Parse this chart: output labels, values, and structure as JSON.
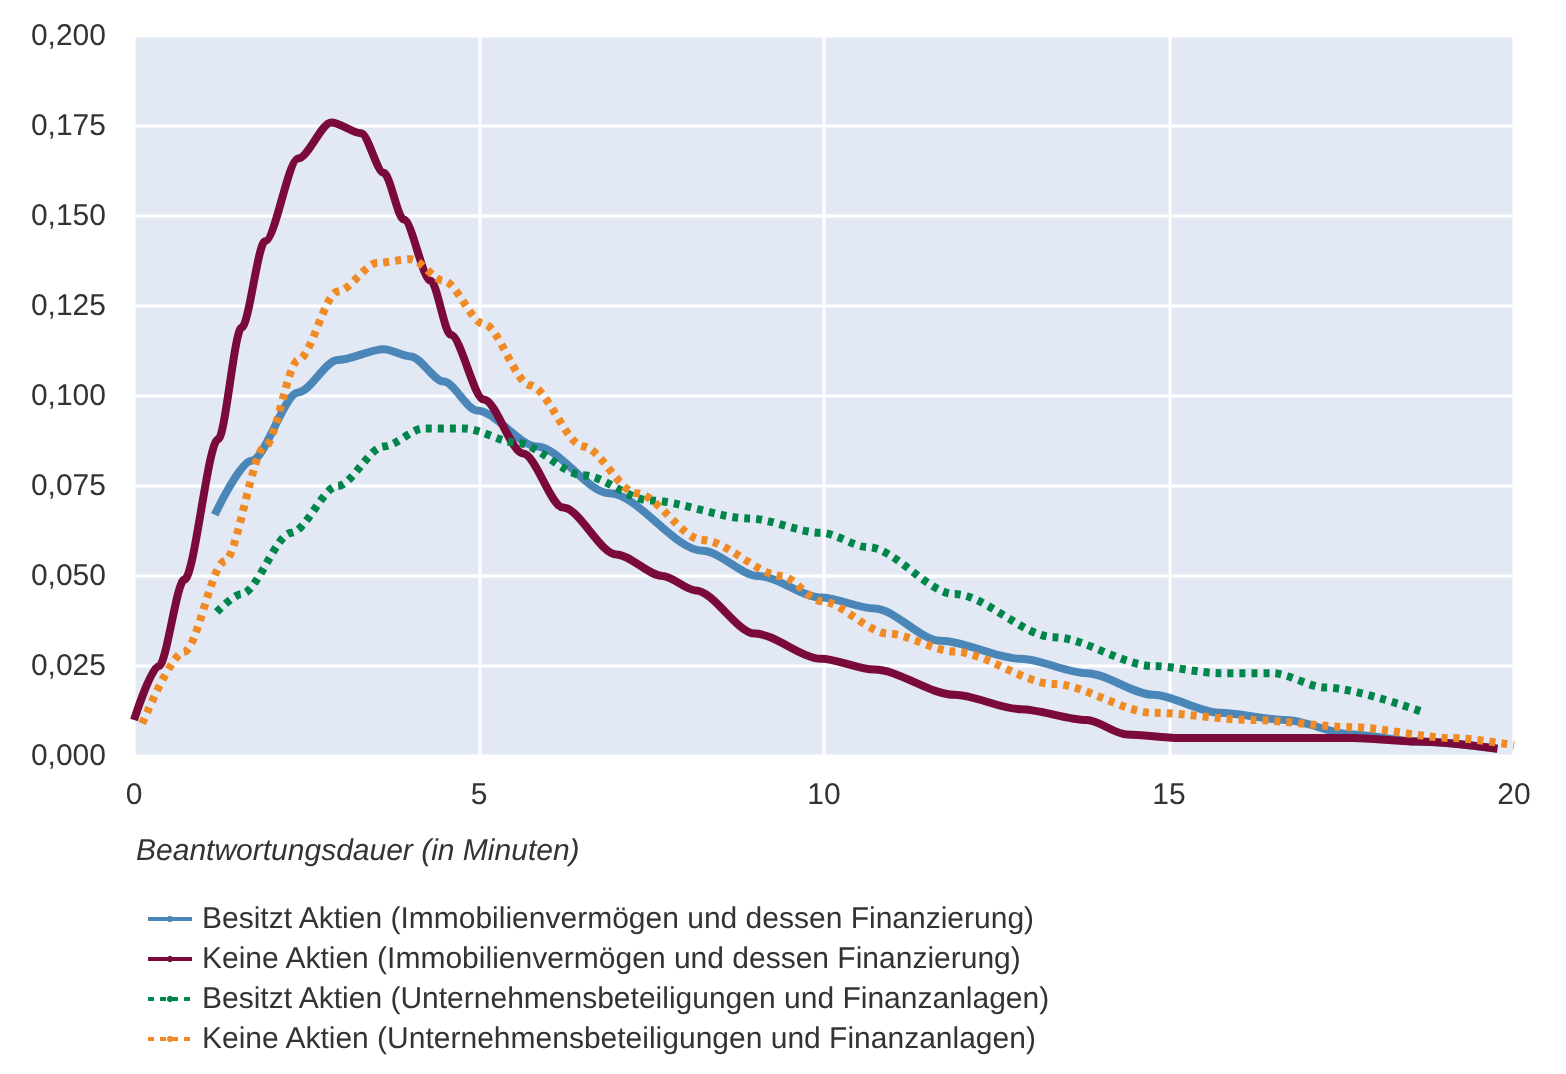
{
  "chart_data": {
    "type": "line",
    "xlabel": "Beantwortungsdauer (in Minuten)",
    "xlim": [
      0,
      20
    ],
    "xticks": [
      0,
      5,
      10,
      15,
      20
    ],
    "ylim": [
      0,
      0.2
    ],
    "yticks": [
      {
        "value": 0,
        "label": "0,000"
      },
      {
        "value": 0.025,
        "label": "0,025"
      },
      {
        "value": 0.05,
        "label": "0,050"
      },
      {
        "value": 0.075,
        "label": "0,075"
      },
      {
        "value": 0.1,
        "label": "0,100"
      },
      {
        "value": 0.125,
        "label": "0,125"
      },
      {
        "value": 0.15,
        "label": "0,150"
      },
      {
        "value": 0.175,
        "label": "0,175"
      },
      {
        "value": 0.2,
        "label": "0,200"
      }
    ],
    "grid": true,
    "legend": "bottom",
    "marker": "none",
    "series": [
      {
        "name": "Besitzt Aktien (Immobilienvermögen und dessen Finanzierung)",
        "color": "#4a86b8",
        "line_style": "solid",
        "x": [
          1.17,
          1.7,
          2.38,
          2.95,
          3.62,
          4.01,
          4.49,
          4.97,
          5.84,
          6.89,
          8.24,
          9.05,
          9.96,
          10.73,
          11.69,
          12.85,
          13.81,
          14.77,
          15.73,
          16.69,
          17.65,
          18.6,
          19.76
        ],
        "values": [
          0.067,
          0.082,
          0.101,
          0.11,
          0.113,
          0.111,
          0.104,
          0.096,
          0.086,
          0.073,
          0.057,
          0.05,
          0.044,
          0.041,
          0.032,
          0.027,
          0.023,
          0.017,
          0.012,
          0.01,
          0.006,
          0.004,
          0.002
        ]
      },
      {
        "name": "Keine Aktien (Immobilienvermögen und dessen Finanzierung)",
        "color": "#7a0a3a",
        "line_style": "solid",
        "x": [
          0,
          0.36,
          0.73,
          1.22,
          1.56,
          1.9,
          2.38,
          2.86,
          3.29,
          3.62,
          3.91,
          4.3,
          4.59,
          5.07,
          5.64,
          6.22,
          6.99,
          7.66,
          8.14,
          9.0,
          9.96,
          10.73,
          11.89,
          12.85,
          13.81,
          14.39,
          15.15,
          16.69,
          17.65,
          18.6,
          19.76
        ],
        "values": [
          0.01,
          0.025,
          0.049,
          0.088,
          0.119,
          0.143,
          0.166,
          0.176,
          0.173,
          0.162,
          0.149,
          0.132,
          0.117,
          0.099,
          0.084,
          0.069,
          0.056,
          0.05,
          0.046,
          0.034,
          0.027,
          0.024,
          0.017,
          0.013,
          0.01,
          0.006,
          0.005,
          0.005,
          0.005,
          0.004,
          0.002
        ]
      },
      {
        "name": "Besitzt Aktien (Unternehmensbeteiligungen und Finanzanlagen)",
        "color": "#00864a",
        "line_style": "dotted",
        "x": [
          1.2,
          1.56,
          2.28,
          2.95,
          3.62,
          4.2,
          4.78,
          5.55,
          6.51,
          7.47,
          8.91,
          9.96,
          10.64,
          11.89,
          13.33,
          14.77,
          15.73,
          16.5,
          17.27,
          18.71
        ],
        "values": [
          0.04,
          0.045,
          0.062,
          0.075,
          0.086,
          0.091,
          0.091,
          0.087,
          0.078,
          0.071,
          0.066,
          0.062,
          0.058,
          0.045,
          0.033,
          0.025,
          0.023,
          0.023,
          0.019,
          0.012
        ]
      },
      {
        "name": "Keine Aktien (Unternehmensbeteiligungen und Finanzanlagen)",
        "color": "#f08a24",
        "line_style": "dotted",
        "x": [
          0.12,
          0.73,
          1.31,
          1.9,
          2.38,
          2.95,
          3.53,
          4.01,
          4.49,
          5.07,
          5.74,
          6.51,
          7.28,
          8.24,
          9.39,
          9.96,
          10.93,
          11.89,
          13.33,
          14.77,
          16.21,
          17.65,
          19.1,
          20
        ],
        "values": [
          0.009,
          0.029,
          0.054,
          0.086,
          0.11,
          0.129,
          0.137,
          0.138,
          0.132,
          0.12,
          0.103,
          0.086,
          0.073,
          0.06,
          0.05,
          0.043,
          0.034,
          0.029,
          0.02,
          0.012,
          0.01,
          0.008,
          0.005,
          0.003
        ]
      }
    ]
  }
}
